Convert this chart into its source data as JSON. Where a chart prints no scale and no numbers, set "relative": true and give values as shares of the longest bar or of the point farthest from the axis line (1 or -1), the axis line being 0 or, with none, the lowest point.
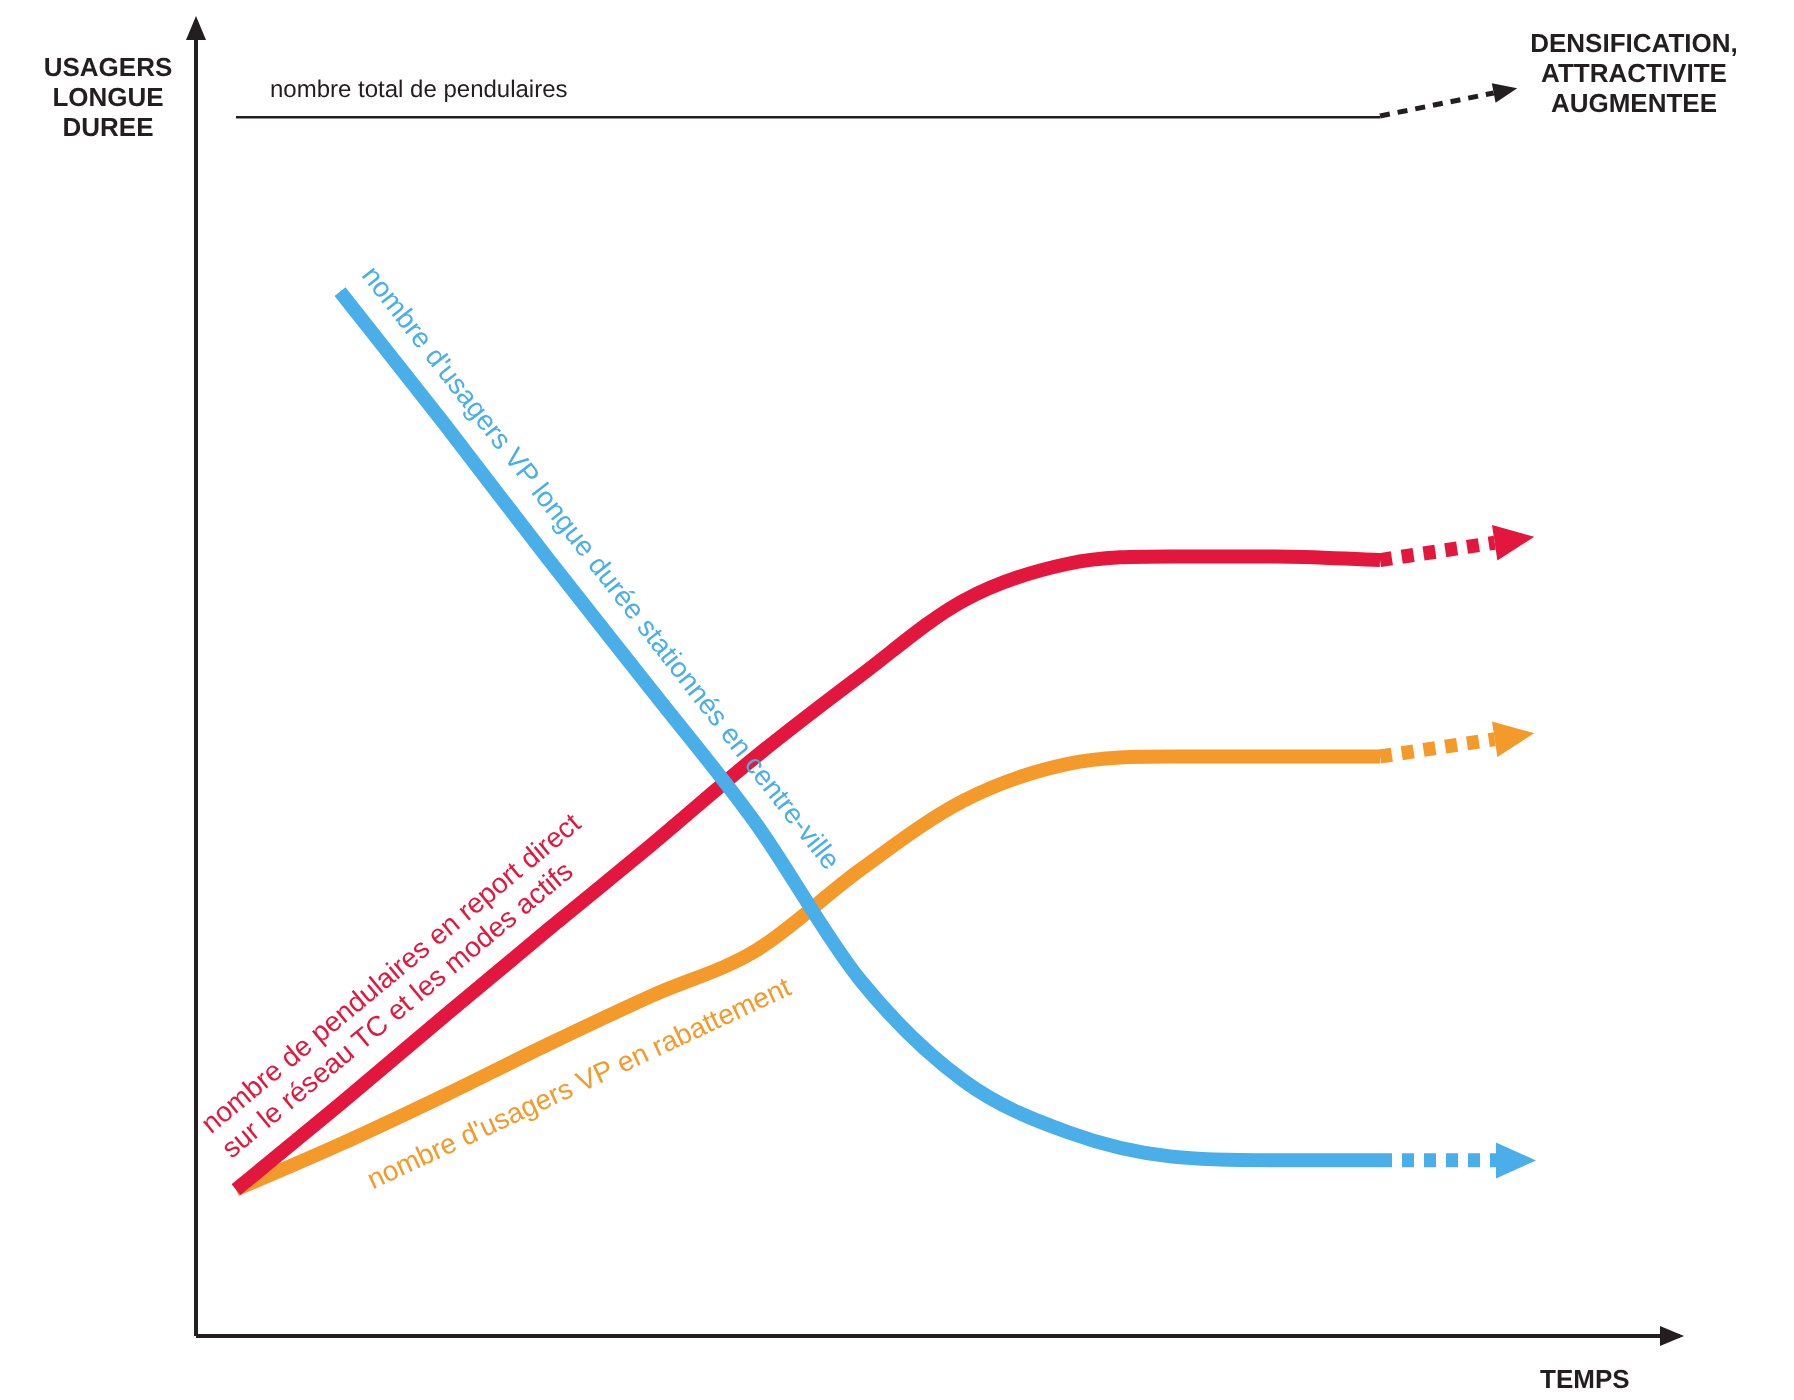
{
  "chart_data": {
    "type": "line",
    "relative": true,
    "xlabel": "TEMPS",
    "ylabel": "USAGERS LONGUE DUREE",
    "annotations": [
      "DENSIFICATION, ATTRACTIVITE AUGMENTEE"
    ],
    "categories": [
      null,
      null,
      null,
      null,
      null,
      null,
      null,
      null,
      null,
      null,
      null,
      null
    ],
    "legend": false,
    "grid": false,
    "marker": "none",
    "series": [
      {
        "name": "nombre total de pendulaires",
        "color": "#231f20",
        "values": [
          1,
          1,
          1,
          1,
          1,
          1,
          1,
          1,
          1,
          1,
          1,
          1
        ]
      },
      {
        "name": "nombre d'usagers VP longue durée stationnés en centre-ville",
        "color": "#4aaee8",
        "values": [
          null,
          0.856,
          0.748,
          0.637,
          0.529,
          0.42,
          0.292,
          0.209,
          0.167,
          0.147,
          0.144,
          0.144
        ]
      },
      {
        "name": "nombre de pendulaires en report direct sur le réseau TC et les modes actifs",
        "color": "#e3173e",
        "values": [
          0.12,
          0.19,
          0.262,
          0.333,
          0.403,
          0.475,
          0.541,
          0.603,
          0.633,
          0.639,
          0.639,
          0.636
        ]
      },
      {
        "name": "nombre d'usagers VP en rabattement",
        "color": "#f39a2b",
        "values": [
          0.12,
          0.157,
          0.197,
          0.239,
          0.279,
          0.316,
          0.382,
          0.439,
          0.469,
          0.475,
          0.475,
          0.475
        ]
      }
    ]
  }
}
